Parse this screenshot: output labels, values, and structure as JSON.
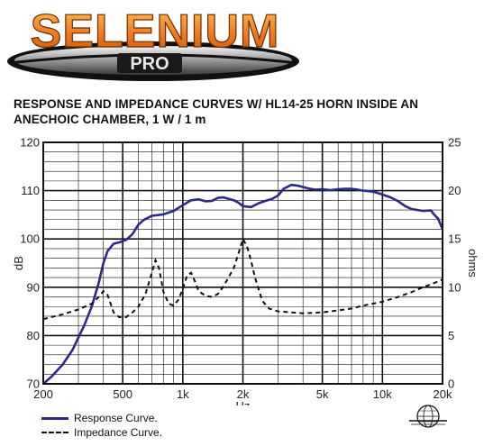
{
  "brand": {
    "name": "SELENIUM",
    "sub": "PRO",
    "colors": {
      "orange": "#f07a1e",
      "orange_light": "#ffb24a",
      "dark": "#111111"
    }
  },
  "title_lines": [
    "RESPONSE AND IMPEDANCE CURVES W/ HL14-25 HORN INSIDE AN",
    "ANECHOIC CHAMBER, 1 W / 1 m"
  ],
  "legend": {
    "response": "Response Curve.",
    "impedance": "Impedance Curve."
  },
  "chart_data": {
    "type": "line",
    "xlabel": "Hz",
    "ylabel": "dB",
    "y2label": "ohms",
    "xscale": "log",
    "xlim": [
      200,
      20000
    ],
    "ylim": [
      70,
      120
    ],
    "y2lim": [
      0,
      25
    ],
    "grid": true,
    "x_ticks": [
      200,
      500,
      1000,
      2000,
      5000,
      10000,
      20000
    ],
    "x_tick_labels": [
      "200",
      "500",
      "1k",
      "2k",
      "5k",
      "10k",
      "20k"
    ],
    "y_ticks": [
      70,
      80,
      90,
      100,
      110,
      120
    ],
    "y2_ticks": [
      0,
      5,
      10,
      15,
      20,
      25
    ],
    "series": [
      {
        "name": "Response Curve.",
        "axis": "left",
        "color": "#2b2a86",
        "style": "solid",
        "points": [
          [
            200,
            70
          ],
          [
            220,
            71.5
          ],
          [
            250,
            74
          ],
          [
            280,
            77
          ],
          [
            320,
            82
          ],
          [
            350,
            86
          ],
          [
            380,
            91
          ],
          [
            400,
            95
          ],
          [
            420,
            97.5
          ],
          [
            450,
            99
          ],
          [
            480,
            99.3
          ],
          [
            520,
            99.8
          ],
          [
            560,
            101
          ],
          [
            600,
            103
          ],
          [
            640,
            104
          ],
          [
            700,
            104.8
          ],
          [
            800,
            105.1
          ],
          [
            900,
            105.8
          ],
          [
            1000,
            107
          ],
          [
            1100,
            108
          ],
          [
            1200,
            108.2
          ],
          [
            1300,
            107.8
          ],
          [
            1400,
            107.9
          ],
          [
            1500,
            108.5
          ],
          [
            1600,
            108.6
          ],
          [
            1700,
            108.3
          ],
          [
            1800,
            108
          ],
          [
            1900,
            107.5
          ],
          [
            2000,
            106.8
          ],
          [
            2200,
            106.6
          ],
          [
            2400,
            107.4
          ],
          [
            2600,
            107.9
          ],
          [
            2800,
            108.3
          ],
          [
            3000,
            109
          ],
          [
            3200,
            110.4
          ],
          [
            3500,
            111.2
          ],
          [
            3800,
            111
          ],
          [
            4200,
            110.5
          ],
          [
            4600,
            110.2
          ],
          [
            5000,
            110.3
          ],
          [
            5500,
            110.1
          ],
          [
            6000,
            110.3
          ],
          [
            6500,
            110.4
          ],
          [
            7000,
            110.4
          ],
          [
            7500,
            110.2
          ],
          [
            8000,
            110
          ],
          [
            9000,
            109.8
          ],
          [
            10000,
            109.2
          ],
          [
            11000,
            108.6
          ],
          [
            12000,
            107.8
          ],
          [
            13000,
            106.8
          ],
          [
            14000,
            106.2
          ],
          [
            16000,
            105.8
          ],
          [
            17500,
            105.9
          ],
          [
            18000,
            105.2
          ],
          [
            19000,
            104.2
          ],
          [
            20000,
            102
          ]
        ]
      },
      {
        "name": "Impedance Curve.",
        "axis": "right",
        "color": "#111111",
        "style": "dashed",
        "points": [
          [
            200,
            6.7
          ],
          [
            250,
            7.2
          ],
          [
            300,
            7.7
          ],
          [
            350,
            8.3
          ],
          [
            380,
            9
          ],
          [
            400,
            9.6
          ],
          [
            420,
            9.2
          ],
          [
            450,
            7.4
          ],
          [
            480,
            6.9
          ],
          [
            520,
            6.9
          ],
          [
            560,
            7.4
          ],
          [
            600,
            8
          ],
          [
            650,
            9.3
          ],
          [
            700,
            11.5
          ],
          [
            730,
            12.8
          ],
          [
            760,
            12
          ],
          [
            800,
            9.5
          ],
          [
            850,
            8.3
          ],
          [
            900,
            8.1
          ],
          [
            950,
            8.7
          ],
          [
            1000,
            9.8
          ],
          [
            1050,
            11.2
          ],
          [
            1100,
            11.5
          ],
          [
            1150,
            10.6
          ],
          [
            1200,
            9.6
          ],
          [
            1300,
            9.1
          ],
          [
            1400,
            9
          ],
          [
            1500,
            9.3
          ],
          [
            1600,
            10.1
          ],
          [
            1800,
            12
          ],
          [
            1900,
            13.5
          ],
          [
            2000,
            15
          ],
          [
            2100,
            14.2
          ],
          [
            2200,
            12.7
          ],
          [
            2300,
            11
          ],
          [
            2500,
            8.6
          ],
          [
            2700,
            7.8
          ],
          [
            3000,
            7.5
          ],
          [
            3500,
            7.4
          ],
          [
            4000,
            7.3
          ],
          [
            5000,
            7.4
          ],
          [
            6000,
            7.6
          ],
          [
            7000,
            7.8
          ],
          [
            8000,
            8.1
          ],
          [
            10000,
            8.5
          ],
          [
            12000,
            9
          ],
          [
            14000,
            9.5
          ],
          [
            16000,
            10
          ],
          [
            18000,
            10.4
          ],
          [
            20000,
            10.8
          ]
        ]
      }
    ]
  }
}
